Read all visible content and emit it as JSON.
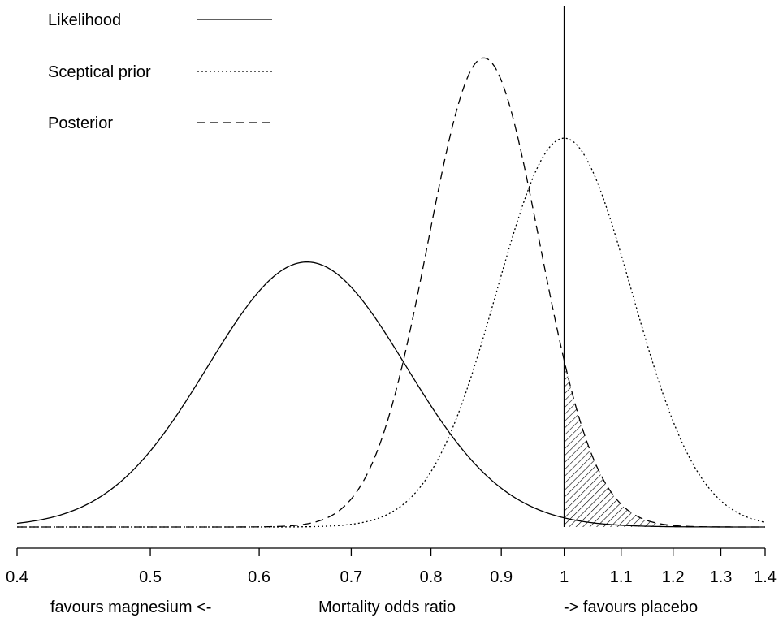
{
  "chart_data": {
    "type": "line",
    "title": "",
    "xscale": "log",
    "xlim": [
      0.4,
      1.4
    ],
    "x_ticks": [
      "0.4",
      "0.5",
      "0.6",
      "0.7",
      "0.8",
      "0.9",
      "1",
      "1.1",
      "1.2",
      "1.3",
      "1.4"
    ],
    "xlabel": "Mortality odds ratio",
    "xlabel_left": "favours magnesium  <-",
    "xlabel_right": "->  favours placebo",
    "reference_line": 1,
    "shaded_region": {
      "series": "Posterior",
      "from": 1,
      "pattern": "hatched"
    },
    "legend": {
      "position": "top-left"
    },
    "series": [
      {
        "name": "Likelihood",
        "style": "solid",
        "mode": 0.65,
        "peak_density": 0.535,
        "log_sd": 0.166
      },
      {
        "name": "Sceptical prior",
        "style": "dotted",
        "mode": 1.0,
        "peak_density": 0.785,
        "log_sd": 0.113
      },
      {
        "name": "Posterior",
        "style": "dashed",
        "mode": 0.874,
        "peak_density": 0.947,
        "log_sd": 0.0935
      }
    ]
  }
}
